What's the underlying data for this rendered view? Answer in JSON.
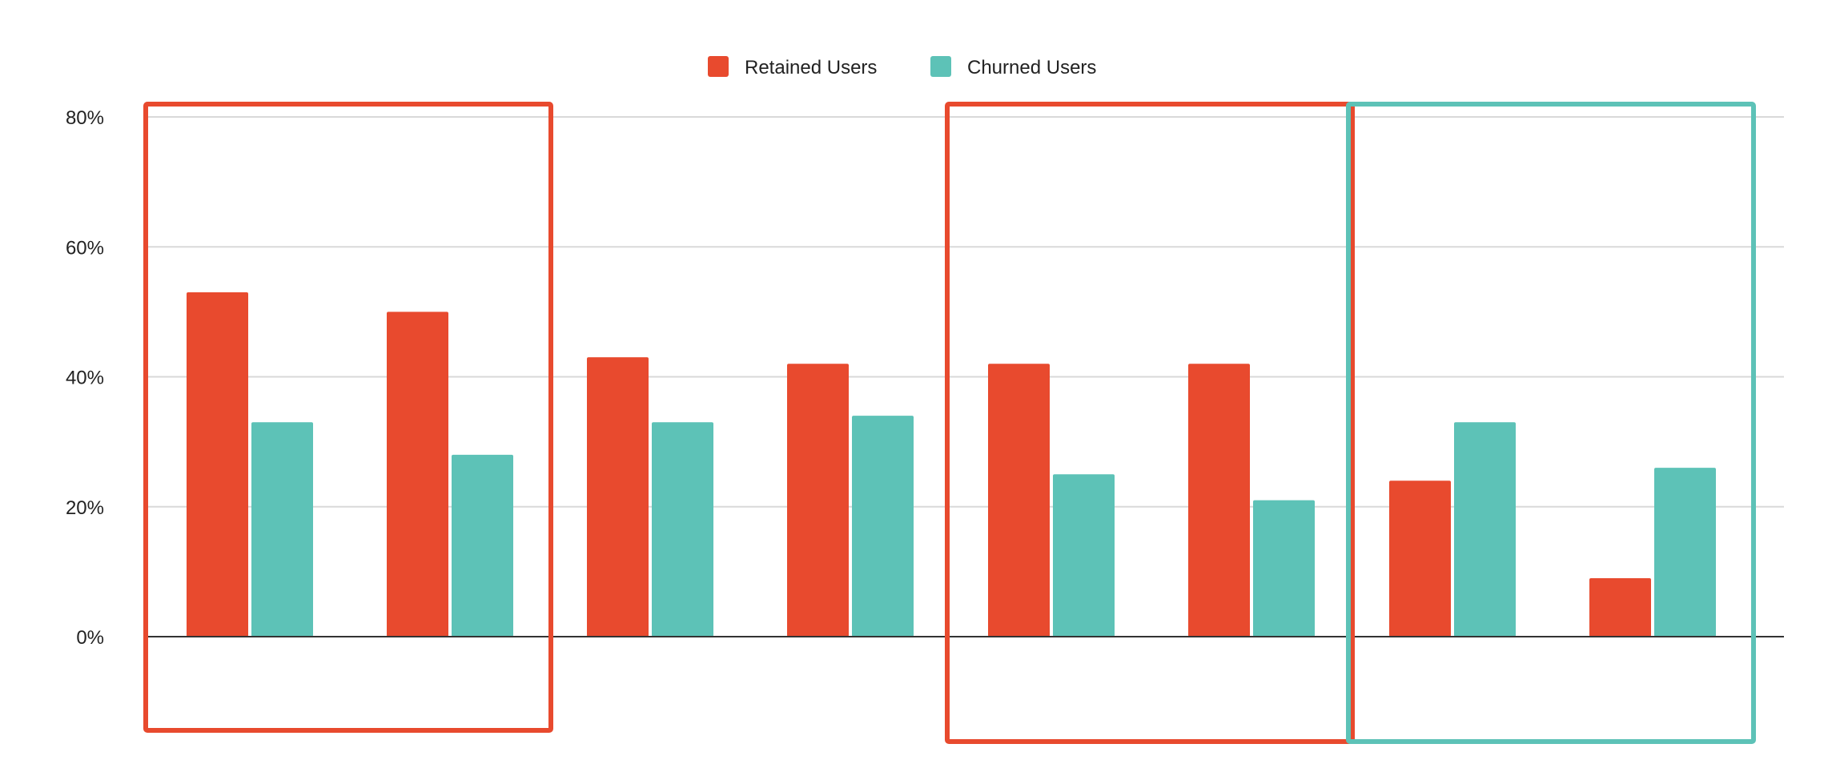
{
  "chart_data": {
    "type": "bar",
    "title": "",
    "xlabel": "",
    "ylabel": "",
    "categories": [
      "",
      "",
      "",
      "",
      "",
      "",
      "",
      ""
    ],
    "series": [
      {
        "name": "Retained Users",
        "color": "#E84A2E",
        "values": [
          53,
          50,
          43,
          42,
          42,
          42,
          24,
          9
        ]
      },
      {
        "name": "Churned Users",
        "color": "#5DC2B7",
        "values": [
          33,
          28,
          33,
          34,
          25,
          21,
          33,
          26
        ]
      }
    ],
    "ylim": [
      -15,
      80
    ],
    "y_ticks": [
      {
        "value": 0,
        "label": "0%"
      },
      {
        "value": 20,
        "label": "20%"
      },
      {
        "value": 40,
        "label": "40%"
      },
      {
        "value": 60,
        "label": "60%"
      },
      {
        "value": 80,
        "label": "80%"
      }
    ],
    "grid": true,
    "legend": "top-center",
    "highlight_groups": [
      {
        "categories": [
          0,
          1
        ],
        "color": "#E84A2E"
      },
      {
        "categories": [
          4,
          5
        ],
        "color": "#E84A2E"
      },
      {
        "categories": [
          6,
          7
        ],
        "color": "#5DC2B7"
      }
    ]
  }
}
